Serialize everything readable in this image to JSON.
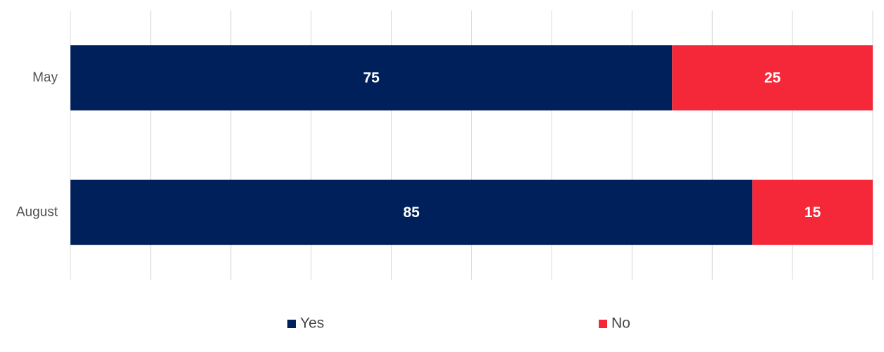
{
  "chart_data": {
    "type": "stacked_barh",
    "categories": [
      "May",
      "August"
    ],
    "series": [
      {
        "name": "Yes",
        "color": "#00205b",
        "values": [
          75,
          85
        ]
      },
      {
        "name": "No",
        "color": "#f42839",
        "values": [
          25,
          15
        ]
      }
    ],
    "xlim": [
      0,
      100
    ],
    "xticks": [
      0,
      10,
      20,
      30,
      40,
      50,
      60,
      70,
      80,
      90,
      100
    ],
    "grid": true,
    "legend": "bottom"
  }
}
